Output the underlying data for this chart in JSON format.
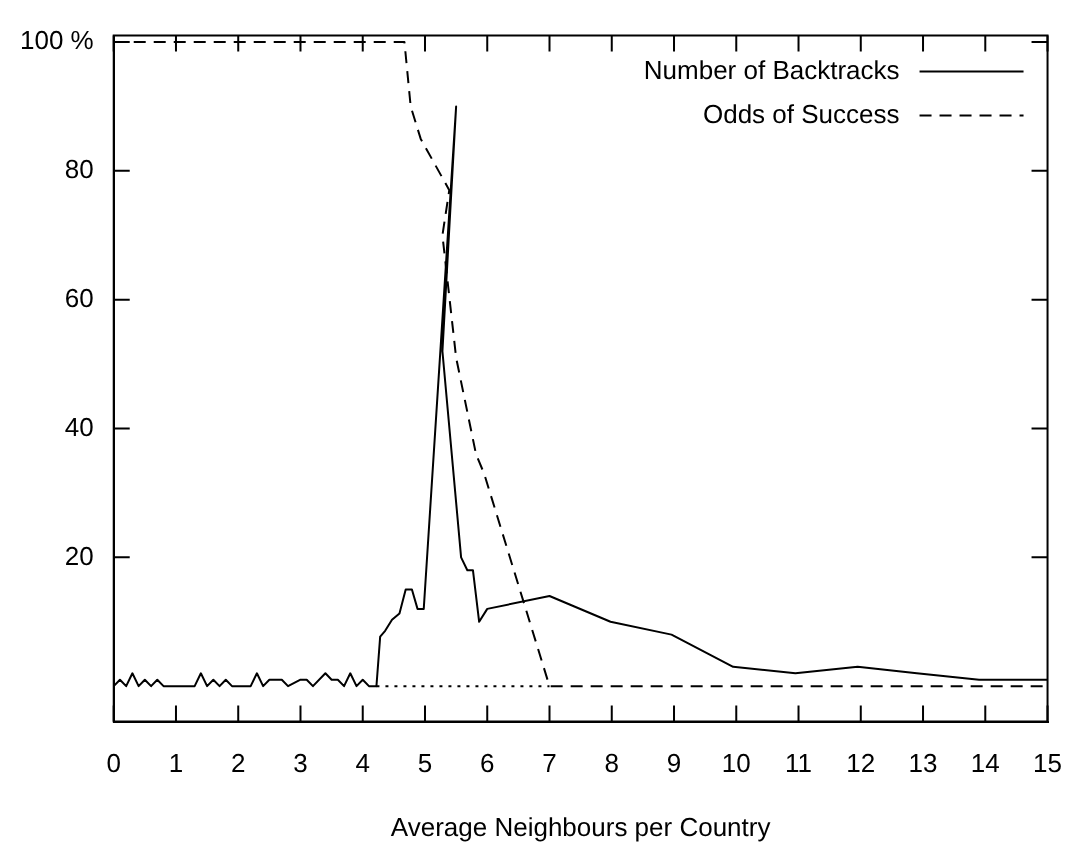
{
  "chart_data": {
    "type": "line",
    "xlabel": "Average Neighbours per Country",
    "xlim": [
      0,
      15
    ],
    "xticks": [
      0,
      1,
      2,
      3,
      4,
      5,
      6,
      7,
      8,
      9,
      10,
      11,
      12,
      13,
      14,
      15
    ],
    "ylim": [
      -5.5,
      101
    ],
    "yticks": [
      20,
      40,
      60,
      80,
      {
        "value": 100,
        "label": "100 %"
      }
    ],
    "legend": "top right",
    "grid": false,
    "marker": "none",
    "series": [
      {
        "name": "Number of Backtracks",
        "color": "#000000",
        "line_style": "solid",
        "x": [
          0,
          0.1,
          0.2,
          0.3,
          0.4,
          0.5,
          0.6,
          0.7,
          0.8,
          1.0,
          1.3,
          1.4,
          1.5,
          1.6,
          1.7,
          1.8,
          1.9,
          2.2,
          2.3,
          2.4,
          2.5,
          2.7,
          2.8,
          3.0,
          3.1,
          3.2,
          3.4,
          3.5,
          3.6,
          3.7,
          3.8,
          3.9,
          4.0,
          4.1,
          4.22,
          4.28,
          4.36,
          4.47,
          4.59,
          4.69,
          4.79,
          4.88,
          4.98,
          5.5,
          5.28,
          5.58,
          5.68,
          5.77,
          5.87,
          6.0,
          7.0,
          7.98,
          8.96,
          9.95,
          10.95,
          11.95,
          12.9,
          13.9,
          15
        ],
        "values": [
          0,
          1,
          0,
          2,
          0,
          1,
          0,
          1,
          0,
          0,
          0,
          2,
          0,
          1,
          0,
          1,
          0,
          0,
          2,
          0,
          1,
          1,
          0,
          1,
          1,
          0,
          2,
          1,
          1,
          0,
          2,
          0,
          1,
          0,
          0,
          7.7,
          8.6,
          10.3,
          11.3,
          15,
          15,
          12,
          12,
          90,
          52,
          20,
          18,
          18,
          10,
          12,
          14,
          10,
          8,
          3,
          2,
          3,
          2,
          1,
          1
        ]
      },
      {
        "name": "Odds of Success",
        "color": "#000000",
        "line_style": "dashed",
        "x": [
          0,
          4.67,
          4.77,
          4.93,
          5.39,
          5.28,
          5.5,
          5.82,
          5.95,
          7,
          15
        ],
        "values": [
          100,
          100,
          90,
          85,
          77,
          70,
          51,
          36,
          33,
          0,
          0
        ]
      },
      {
        "color": "#000000",
        "line_style": "dotted",
        "x": [
          4.22,
          7
        ],
        "values": [
          0,
          0
        ]
      }
    ]
  }
}
